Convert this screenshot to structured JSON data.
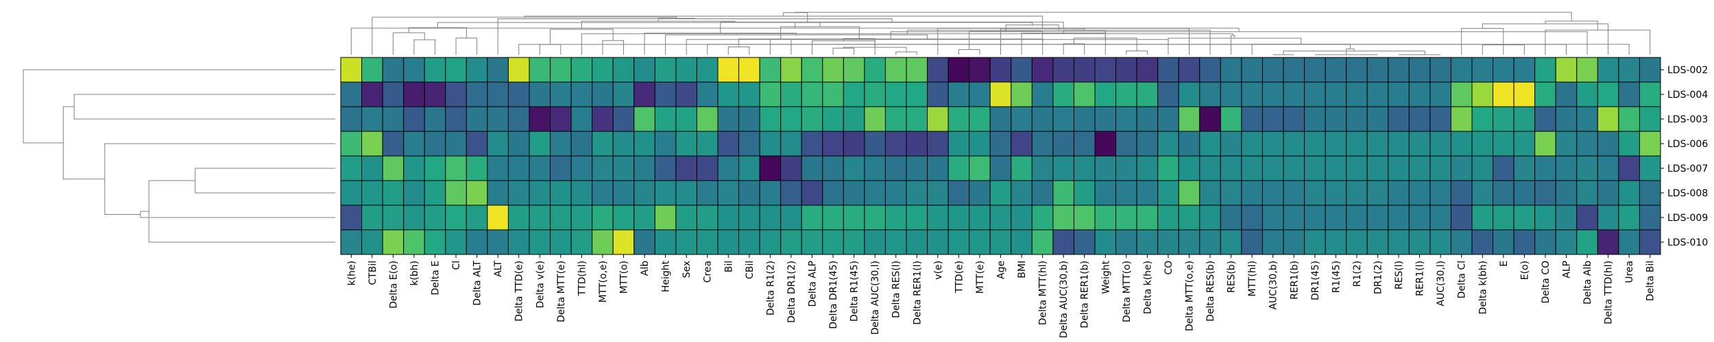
{
  "chart_data": {
    "type": "heatmap",
    "title": "",
    "xlabel": "",
    "ylabel": "",
    "colormap": "viridis",
    "value_range": [
      0,
      1
    ],
    "colorbar": false,
    "grid": false,
    "row_dendrogram": "left",
    "column_dendrogram": "top",
    "rows": [
      "LDS-002",
      "LDS-004",
      "LDS-003",
      "LDS-006",
      "LDS-007",
      "LDS-008",
      "LDS-009",
      "LDS-010"
    ],
    "columns": [
      "k(he)",
      "CTBil",
      "Delta E(o)",
      "k(bh)",
      "Delta E",
      "Cl",
      "Delta ALT",
      "ALT",
      "Delta TTD(e)",
      "Delta v(e)",
      "Delta MTT(e)",
      "TTD(hl)",
      "MTT(o,e)",
      "MTT(o)",
      "Alb",
      "Height",
      "Sex",
      "Crea",
      "Bil",
      "CBil",
      "Delta R1(2)",
      "Delta DR1(2)",
      "Delta ALP",
      "Delta DR1(45)",
      "Delta R1(45)",
      "Delta AUC(30,l)",
      "Delta RES(l)",
      "Delta RER1(l)",
      "v(e)",
      "TTD(e)",
      "MTT(e)",
      "Age",
      "BMI",
      "Delta MTT(hl)",
      "Delta AUC(30,b)",
      "Delta RER1(b)",
      "Weight",
      "Delta MTT(o)",
      "Delta k(he)",
      "CO",
      "Delta MTT(o,e)",
      "Delta RES(b)",
      "RES(b)",
      "MTT(hl)",
      "AUC(30,b)",
      "RER1(b)",
      "DR1(45)",
      "R1(45)",
      "R1(2)",
      "DR1(2)",
      "RES(l)",
      "RER1(l)",
      "AUC(30,l)",
      "Delta Cl",
      "Delta k(bh)",
      "E",
      "E(o)",
      "Delta CO",
      "ALP",
      "Delta Alb",
      "Delta TTD(hl)",
      "Urea",
      "Delta Bil"
    ],
    "values": [
      [
        0.92,
        0.65,
        0.4,
        0.42,
        0.55,
        0.58,
        0.48,
        0.4,
        0.93,
        0.67,
        0.67,
        0.62,
        0.58,
        0.53,
        0.48,
        0.55,
        0.52,
        0.52,
        0.98,
        0.98,
        0.68,
        0.82,
        0.7,
        0.78,
        0.75,
        0.62,
        0.75,
        0.75,
        0.22,
        0.02,
        0.05,
        0.18,
        0.28,
        0.12,
        0.18,
        0.18,
        0.2,
        0.18,
        0.15,
        0.28,
        0.22,
        0.3,
        0.4,
        0.4,
        0.38,
        0.38,
        0.38,
        0.38,
        0.38,
        0.38,
        0.38,
        0.38,
        0.38,
        0.42,
        0.42,
        0.42,
        0.42,
        0.58,
        0.85,
        0.8,
        0.48,
        0.45,
        0.4
      ],
      [
        0.38,
        0.1,
        0.28,
        0.08,
        0.1,
        0.25,
        0.35,
        0.35,
        0.32,
        0.4,
        0.42,
        0.42,
        0.4,
        0.45,
        0.12,
        0.28,
        0.22,
        0.42,
        0.52,
        0.52,
        0.68,
        0.62,
        0.66,
        0.68,
        0.6,
        0.62,
        0.6,
        0.6,
        0.28,
        0.42,
        0.42,
        0.95,
        0.78,
        0.42,
        0.62,
        0.72,
        0.6,
        0.62,
        0.62,
        0.32,
        0.48,
        0.42,
        0.42,
        0.42,
        0.42,
        0.42,
        0.42,
        0.42,
        0.42,
        0.42,
        0.42,
        0.42,
        0.42,
        0.75,
        0.85,
        0.98,
        0.98,
        0.62,
        0.38,
        0.55,
        0.6,
        0.38,
        0.62
      ],
      [
        0.38,
        0.42,
        0.4,
        0.28,
        0.4,
        0.3,
        0.4,
        0.4,
        0.35,
        0.05,
        0.12,
        0.42,
        0.15,
        0.28,
        0.72,
        0.58,
        0.58,
        0.75,
        0.4,
        0.4,
        0.6,
        0.6,
        0.62,
        0.58,
        0.55,
        0.78,
        0.62,
        0.62,
        0.85,
        0.62,
        0.62,
        0.4,
        0.42,
        0.4,
        0.42,
        0.4,
        0.4,
        0.42,
        0.4,
        0.4,
        0.75,
        0.02,
        0.65,
        0.32,
        0.32,
        0.32,
        0.4,
        0.4,
        0.4,
        0.4,
        0.32,
        0.32,
        0.32,
        0.8,
        0.6,
        0.58,
        0.55,
        0.32,
        0.4,
        0.42,
        0.85,
        0.68,
        0.58
      ],
      [
        0.68,
        0.8,
        0.3,
        0.42,
        0.38,
        0.4,
        0.25,
        0.48,
        0.4,
        0.55,
        0.42,
        0.38,
        0.52,
        0.48,
        0.5,
        0.42,
        0.52,
        0.52,
        0.25,
        0.35,
        0.48,
        0.48,
        0.25,
        0.2,
        0.18,
        0.28,
        0.2,
        0.18,
        0.22,
        0.5,
        0.5,
        0.35,
        0.2,
        0.38,
        0.35,
        0.35,
        0.02,
        0.35,
        0.38,
        0.48,
        0.4,
        0.5,
        0.45,
        0.48,
        0.48,
        0.48,
        0.48,
        0.48,
        0.48,
        0.48,
        0.48,
        0.48,
        0.48,
        0.5,
        0.52,
        0.52,
        0.52,
        0.8,
        0.45,
        0.42,
        0.4,
        0.55,
        0.8
      ],
      [
        0.55,
        0.5,
        0.75,
        0.52,
        0.6,
        0.7,
        0.62,
        0.42,
        0.42,
        0.42,
        0.35,
        0.42,
        0.45,
        0.45,
        0.42,
        0.3,
        0.2,
        0.22,
        0.42,
        0.48,
        0.02,
        0.18,
        0.4,
        0.4,
        0.45,
        0.42,
        0.38,
        0.4,
        0.4,
        0.62,
        0.68,
        0.38,
        0.62,
        0.45,
        0.48,
        0.48,
        0.45,
        0.45,
        0.48,
        0.62,
        0.5,
        0.48,
        0.48,
        0.48,
        0.48,
        0.48,
        0.48,
        0.48,
        0.48,
        0.48,
        0.48,
        0.48,
        0.48,
        0.45,
        0.48,
        0.3,
        0.45,
        0.42,
        0.42,
        0.45,
        0.42,
        0.2,
        0.52
      ],
      [
        0.5,
        0.52,
        0.55,
        0.48,
        0.55,
        0.75,
        0.8,
        0.42,
        0.45,
        0.48,
        0.5,
        0.48,
        0.42,
        0.42,
        0.45,
        0.48,
        0.48,
        0.42,
        0.45,
        0.4,
        0.42,
        0.3,
        0.22,
        0.38,
        0.4,
        0.42,
        0.42,
        0.45,
        0.45,
        0.35,
        0.4,
        0.55,
        0.45,
        0.4,
        0.68,
        0.55,
        0.42,
        0.42,
        0.42,
        0.52,
        0.75,
        0.45,
        0.45,
        0.42,
        0.42,
        0.42,
        0.45,
        0.45,
        0.45,
        0.45,
        0.42,
        0.42,
        0.42,
        0.32,
        0.45,
        0.38,
        0.38,
        0.35,
        0.4,
        0.45,
        0.4,
        0.5,
        0.38
      ],
      [
        0.25,
        0.55,
        0.55,
        0.52,
        0.55,
        0.6,
        0.55,
        0.98,
        0.55,
        0.55,
        0.55,
        0.55,
        0.62,
        0.58,
        0.55,
        0.78,
        0.55,
        0.55,
        0.5,
        0.5,
        0.5,
        0.5,
        0.62,
        0.62,
        0.62,
        0.62,
        0.58,
        0.58,
        0.52,
        0.52,
        0.52,
        0.52,
        0.5,
        0.62,
        0.72,
        0.72,
        0.65,
        0.65,
        0.65,
        0.55,
        0.55,
        0.5,
        0.38,
        0.35,
        0.42,
        0.42,
        0.42,
        0.42,
        0.42,
        0.42,
        0.42,
        0.42,
        0.42,
        0.28,
        0.55,
        0.55,
        0.55,
        0.52,
        0.45,
        0.22,
        0.48,
        0.55,
        0.35
      ],
      [
        0.45,
        0.5,
        0.8,
        0.72,
        0.6,
        0.52,
        0.42,
        0.42,
        0.48,
        0.52,
        0.52,
        0.55,
        0.78,
        0.95,
        0.4,
        0.5,
        0.52,
        0.52,
        0.5,
        0.5,
        0.52,
        0.55,
        0.55,
        0.55,
        0.55,
        0.5,
        0.52,
        0.5,
        0.5,
        0.52,
        0.52,
        0.52,
        0.5,
        0.68,
        0.25,
        0.32,
        0.48,
        0.42,
        0.45,
        0.45,
        0.45,
        0.45,
        0.48,
        0.32,
        0.42,
        0.42,
        0.48,
        0.48,
        0.48,
        0.48,
        0.48,
        0.48,
        0.48,
        0.42,
        0.3,
        0.4,
        0.32,
        0.4,
        0.45,
        0.58,
        0.1,
        0.42,
        0.25
      ]
    ]
  }
}
